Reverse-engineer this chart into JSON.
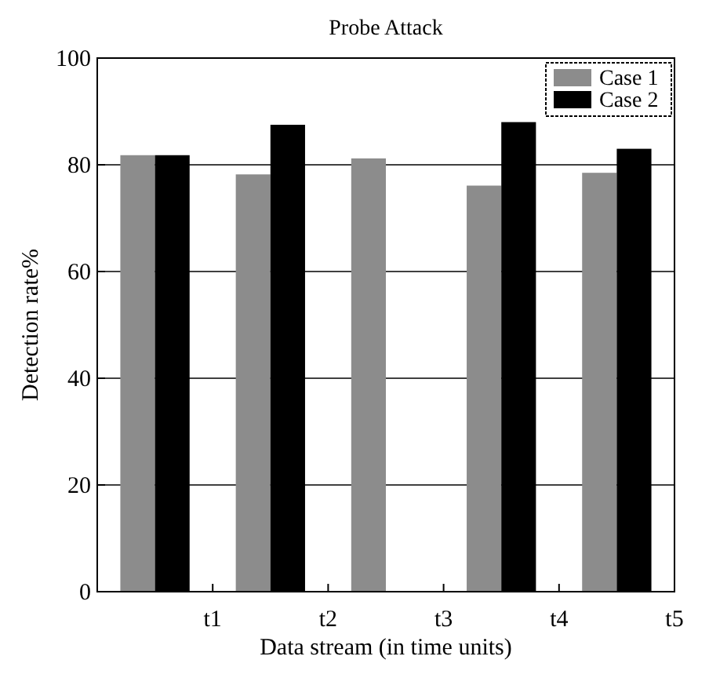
{
  "chart_data": {
    "type": "bar",
    "title": "Probe Attack",
    "xlabel": "Data stream (in time units)",
    "ylabel": "Detection rate%",
    "categories": [
      null,
      "t1",
      null,
      "t2",
      null,
      "t3",
      null,
      "t4",
      null,
      "t5"
    ],
    "series": [
      {
        "name": "Case 1",
        "color": "#8c8c8c",
        "values": [
          81.8,
          null,
          78.2,
          null,
          81.2,
          null,
          76.1,
          null,
          78.5,
          null
        ]
      },
      {
        "name": "Case 2",
        "color": "#000000",
        "values": [
          81.8,
          null,
          87.5,
          null,
          null,
          null,
          88,
          null,
          83,
          null
        ]
      }
    ],
    "ylim": [
      0,
      100
    ],
    "yticks": [
      0,
      20,
      40,
      60,
      80,
      100
    ],
    "grid": "y",
    "legend": "top right"
  }
}
